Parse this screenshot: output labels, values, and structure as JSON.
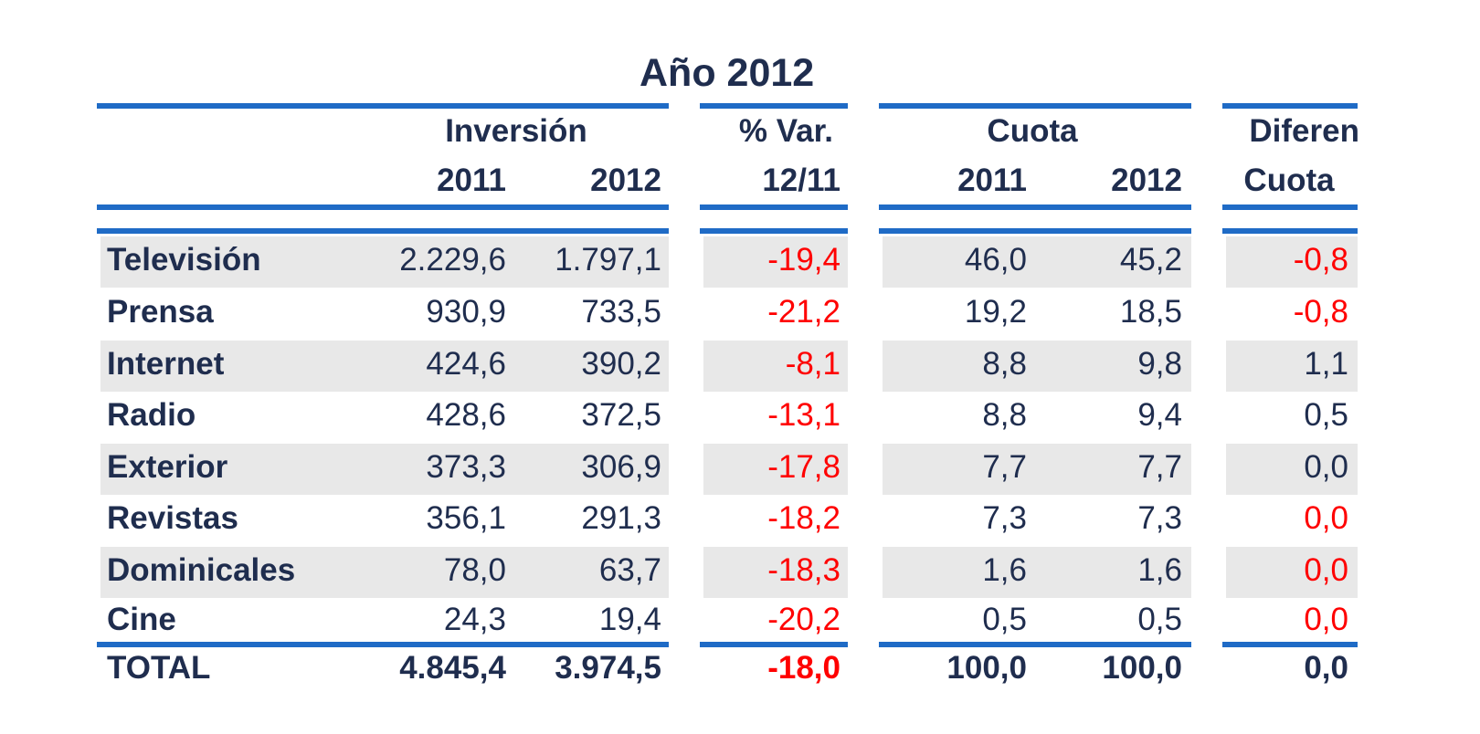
{
  "title": "Año 2012",
  "headers": {
    "inversion": "Inversión",
    "var_top": "% Var.",
    "var_bottom": "12/11",
    "cuota": "Cuota",
    "dif_top": "Diferen",
    "dif_bottom": "Cuota",
    "y2011_inv": "2011",
    "y2012_inv": "2012",
    "y2011_cuota": "2011",
    "y2012_cuota": "2012"
  },
  "rows": [
    {
      "label": "Televisión",
      "inv2011": "2.229,6",
      "inv2012": "1.797,1",
      "var": "-19,4",
      "cuota2011": "46,0",
      "cuota2012": "45,2",
      "dif": "-0,8"
    },
    {
      "label": "Prensa",
      "inv2011": "930,9",
      "inv2012": "733,5",
      "var": "-21,2",
      "cuota2011": "19,2",
      "cuota2012": "18,5",
      "dif": "-0,8"
    },
    {
      "label": "Internet",
      "inv2011": "424,6",
      "inv2012": "390,2",
      "var": "-8,1",
      "cuota2011": "8,8",
      "cuota2012": "9,8",
      "dif": "1,1"
    },
    {
      "label": "Radio",
      "inv2011": "428,6",
      "inv2012": "372,5",
      "var": "-13,1",
      "cuota2011": "8,8",
      "cuota2012": "9,4",
      "dif": "0,5"
    },
    {
      "label": "Exterior",
      "inv2011": "373,3",
      "inv2012": "306,9",
      "var": "-17,8",
      "cuota2011": "7,7",
      "cuota2012": "7,7",
      "dif": "0,0"
    },
    {
      "label": "Revistas",
      "inv2011": "356,1",
      "inv2012": "291,3",
      "var": "-18,2",
      "cuota2011": "7,3",
      "cuota2012": "7,3",
      "dif": "0,0"
    },
    {
      "label": "Dominicales",
      "inv2011": "78,0",
      "inv2012": "63,7",
      "var": "-18,3",
      "cuota2011": "1,6",
      "cuota2012": "1,6",
      "dif": "0,0"
    },
    {
      "label": "Cine",
      "inv2011": "24,3",
      "inv2012": "19,4",
      "var": "-20,2",
      "cuota2011": "0,5",
      "cuota2012": "0,5",
      "dif": "0,0"
    }
  ],
  "total": {
    "label": "TOTAL",
    "inv2011": "4.845,4",
    "inv2012": "3.974,5",
    "var": "-18,0",
    "cuota2011": "100,0",
    "cuota2012": "100,0",
    "dif": "0,0"
  },
  "colors": {
    "rule": "#1f6bc6",
    "text": "#1f2d4e",
    "negative": "#ff0000",
    "band": "#e8e8e8"
  },
  "dif_red_rows": [
    0,
    1,
    5,
    6,
    7
  ]
}
